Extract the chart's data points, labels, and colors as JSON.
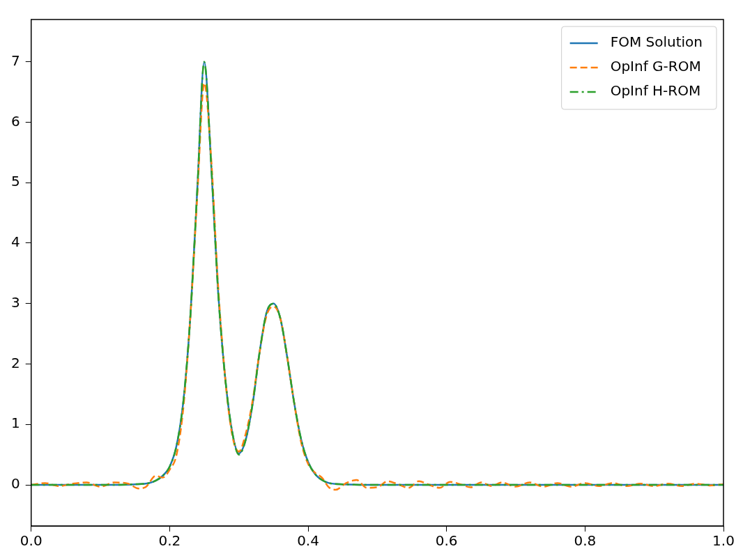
{
  "chart_data": {
    "type": "line",
    "xlim": [
      0,
      1
    ],
    "ylim": [
      -0.68,
      7.7
    ],
    "xticks": [
      {
        "value": 0,
        "label": "0.0"
      },
      {
        "value": 0.2,
        "label": "0.2"
      },
      {
        "value": 0.4,
        "label": "0.4"
      },
      {
        "value": 0.6,
        "label": "0.6"
      },
      {
        "value": 0.8,
        "label": "0.8"
      },
      {
        "value": 1,
        "label": "1.0"
      }
    ],
    "yticks": [
      0,
      1,
      2,
      3,
      4,
      5,
      6,
      7
    ],
    "grid": false,
    "legend": "top right",
    "marker": "none",
    "series": [
      {
        "name": "FOM Solution",
        "color": "#1f77b4",
        "line_style": "solid",
        "x": [
          0,
          0.1,
          0.15,
          0.17,
          0.18,
          0.19,
          0.2,
          0.21,
          0.22,
          0.23,
          0.24,
          0.25,
          0.26,
          0.27,
          0.28,
          0.29,
          0.3,
          0.31,
          0.32,
          0.33,
          0.34,
          0.35,
          0.36,
          0.37,
          0.38,
          0.39,
          0.4,
          0.41,
          0.42,
          0.43,
          0.45,
          0.5,
          1
        ],
        "values": [
          0,
          0,
          0.01,
          0.03,
          0.07,
          0.15,
          0.3,
          0.65,
          1.4,
          2.8,
          4.9,
          7,
          5.3,
          3.2,
          1.8,
          0.9,
          0.52,
          0.75,
          1.35,
          2.2,
          2.85,
          3,
          2.75,
          2.1,
          1.35,
          0.75,
          0.38,
          0.18,
          0.08,
          0.03,
          0.01,
          0,
          0
        ]
      },
      {
        "name": "OpInf G-ROM",
        "color": "#ff7f0e",
        "line_style": "dashed",
        "x": [
          0,
          0.02,
          0.04,
          0.06,
          0.08,
          0.1,
          0.12,
          0.14,
          0.155,
          0.165,
          0.18,
          0.19,
          0.2,
          0.21,
          0.22,
          0.23,
          0.24,
          0.25,
          0.26,
          0.27,
          0.28,
          0.29,
          0.3,
          0.31,
          0.32,
          0.33,
          0.34,
          0.35,
          0.36,
          0.37,
          0.38,
          0.39,
          0.4,
          0.41,
          0.42,
          0.43,
          0.44,
          0.455,
          0.47,
          0.485,
          0.5,
          0.515,
          0.53,
          0.545,
          0.56,
          0.575,
          0.59,
          0.605,
          0.62,
          0.635,
          0.65,
          0.665,
          0.68,
          0.7,
          0.72,
          0.74,
          0.76,
          0.78,
          0.8,
          0.82,
          0.84,
          0.86,
          0.88,
          0.9,
          0.92,
          0.94,
          0.96,
          0.98,
          1
        ],
        "values": [
          0,
          0.03,
          -0.02,
          0.02,
          0.04,
          -0.03,
          0.04,
          0.02,
          -0.06,
          -0.04,
          0.15,
          0.12,
          0.25,
          0.5,
          1.3,
          2.8,
          4.8,
          6.65,
          5.4,
          3.3,
          1.8,
          0.85,
          0.55,
          0.85,
          1.4,
          2.2,
          2.8,
          2.95,
          2.75,
          2.1,
          1.35,
          0.7,
          0.35,
          0.2,
          0.12,
          -0.04,
          -0.08,
          0.03,
          0.08,
          -0.05,
          -0.04,
          0.06,
          0.01,
          -0.05,
          0.06,
          0,
          -0.05,
          0.05,
          0.01,
          -0.04,
          0.04,
          -0.02,
          0.04,
          -0.03,
          0.04,
          -0.03,
          0.03,
          -0.03,
          0.03,
          -0.02,
          0.03,
          -0.02,
          0.02,
          -0.02,
          0.02,
          -0.02,
          0.02,
          -0.01,
          0.01
        ]
      },
      {
        "name": "OpInf H-ROM",
        "color": "#2ca02c",
        "line_style": "dashdot",
        "x": [
          0,
          0.1,
          0.15,
          0.17,
          0.18,
          0.19,
          0.2,
          0.21,
          0.22,
          0.23,
          0.24,
          0.25,
          0.26,
          0.27,
          0.28,
          0.29,
          0.3,
          0.31,
          0.32,
          0.33,
          0.34,
          0.35,
          0.36,
          0.37,
          0.38,
          0.39,
          0.4,
          0.41,
          0.42,
          0.43,
          0.45,
          0.5,
          1
        ],
        "values": [
          0,
          0,
          0.01,
          0.03,
          0.07,
          0.15,
          0.3,
          0.65,
          1.4,
          2.8,
          4.9,
          7,
          5.3,
          3.2,
          1.8,
          0.9,
          0.5,
          0.75,
          1.35,
          2.2,
          2.85,
          3,
          2.75,
          2.1,
          1.35,
          0.75,
          0.38,
          0.18,
          0.08,
          0.03,
          0.01,
          0,
          0
        ]
      }
    ]
  }
}
